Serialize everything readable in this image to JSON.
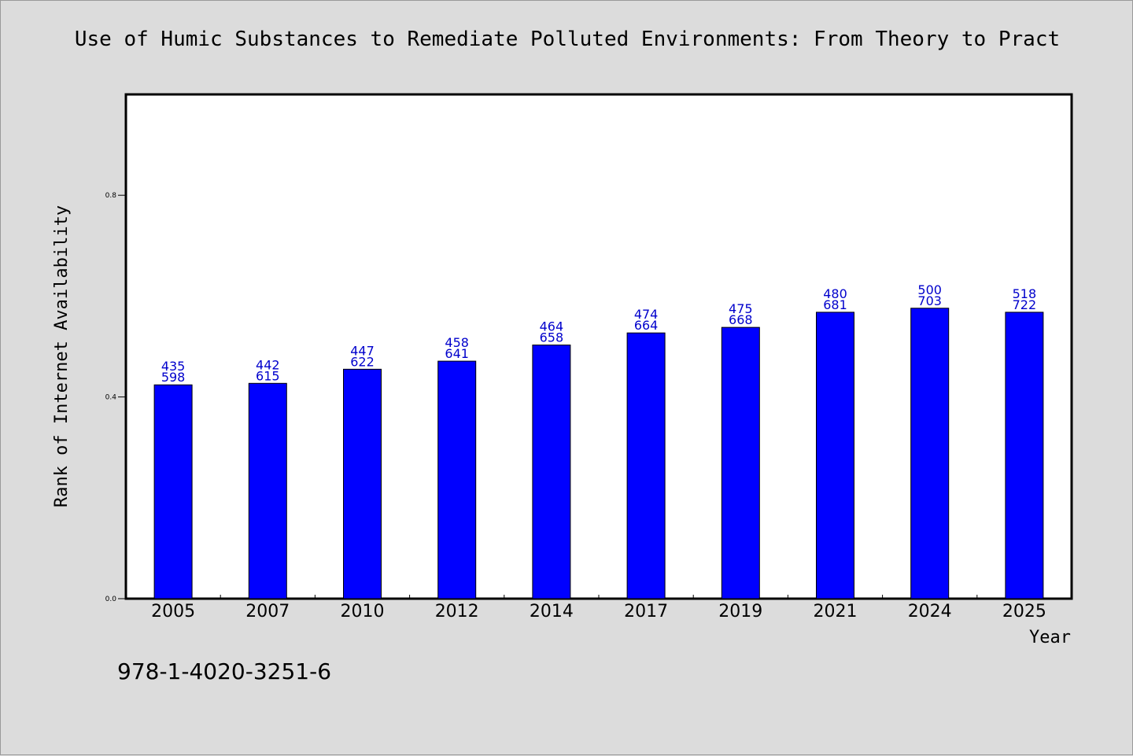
{
  "chart_data": {
    "type": "bar",
    "title": "Use of Humic Substances to Remediate Polluted Environments: From Theory to Pract",
    "xlabel": "Year",
    "ylabel": "Rank of Internet Availability",
    "ylim": [
      0,
      1.0
    ],
    "yticks": [
      "0.0",
      "0.4",
      "0.8"
    ],
    "ytick_values": [
      0,
      0.4,
      0.8
    ],
    "categories": [
      "2005",
      "2007",
      "2010",
      "2012",
      "2014",
      "2017",
      "2019",
      "2021",
      "2024",
      "2025"
    ],
    "values": [
      0.424,
      0.427,
      0.455,
      0.471,
      0.503,
      0.527,
      0.538,
      0.568,
      0.576,
      0.568
    ],
    "labels_top": [
      "435",
      "442",
      "447",
      "458",
      "464",
      "474",
      "475",
      "480",
      "500",
      "518"
    ],
    "labels_bottom": [
      "598",
      "615",
      "622",
      "641",
      "658",
      "664",
      "668",
      "681",
      "703",
      "722"
    ],
    "bar_color": "#0000ff",
    "label_color": "#0000cc",
    "grid": false
  },
  "footer": {
    "isbn": "978-1-4020-3251-6"
  }
}
